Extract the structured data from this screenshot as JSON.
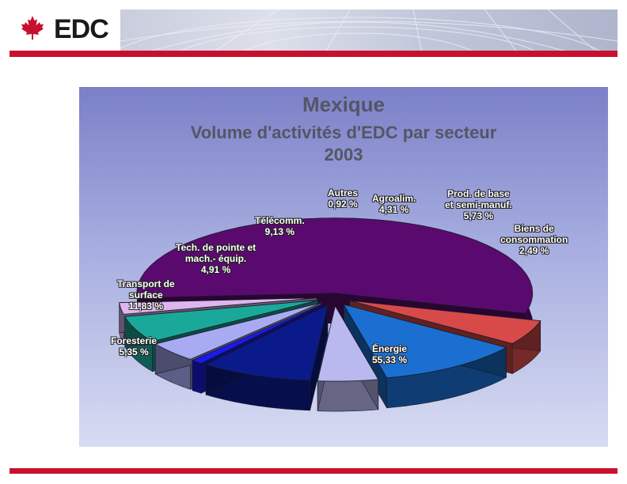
{
  "header": {
    "logo_text": "EDC",
    "accent_color": "#c8102e"
  },
  "chart_data": {
    "type": "pie",
    "title": "Mexique",
    "subtitle": "Volume d'activités d'EDC par secteur",
    "year": "2003",
    "slices": [
      {
        "label": "Énergie",
        "value": 55.33,
        "value_text": "55,33 %",
        "color": "#5a0a6e"
      },
      {
        "label": "Foresterie",
        "value": 5.35,
        "value_text": "5,35 %",
        "color": "#d84a4a"
      },
      {
        "label": "Transport de surface",
        "value": 11.83,
        "value_text": "11,83 %",
        "color": "#1b6fd1"
      },
      {
        "label": "Tech. de pointe et mach.- équip.",
        "value": 4.91,
        "value_text": "4,91 %",
        "color": "#b9b9f0"
      },
      {
        "label": "Télécomm.",
        "value": 9.13,
        "value_text": "9,13 %",
        "color": "#0b1a8a"
      },
      {
        "label": "Autres",
        "value": 0.92,
        "value_text": "0,92 %",
        "color": "#1a1af0"
      },
      {
        "label": "Agroalim.",
        "value": 4.31,
        "value_text": "4,31 %",
        "color": "#a8aaf2"
      },
      {
        "label": "Prod. de base et semi-manuf.",
        "value": 5.73,
        "value_text": "5,73 %",
        "color": "#1aa89a"
      },
      {
        "label": "Biens de consommation",
        "value": 2.49,
        "value_text": "2,49 %",
        "color": "#ddb6ee"
      }
    ]
  },
  "labels": {
    "energie": {
      "l1": "Énergie",
      "l2": "55,33 %"
    },
    "foresterie": {
      "l1": "Foresterie",
      "l2": "5,35 %"
    },
    "transport": {
      "l1": "Transport de",
      "l2": "surface",
      "l3": "11,83 %"
    },
    "tech": {
      "l1": "Tech. de pointe et",
      "l2": "mach.- équip.",
      "l3": "4,91 %"
    },
    "telecomm": {
      "l1": "Télécomm.",
      "l2": "9,13 %"
    },
    "autres": {
      "l1": "Autres",
      "l2": "0,92 %"
    },
    "agroalim": {
      "l1": "Agroalim.",
      "l2": "4,31 %"
    },
    "prod": {
      "l1": "Prod. de base",
      "l2": "et semi-manuf.",
      "l3": "5,73 %"
    },
    "biens": {
      "l1": "Biens de",
      "l2": "consommation",
      "l3": "2,49 %"
    }
  }
}
